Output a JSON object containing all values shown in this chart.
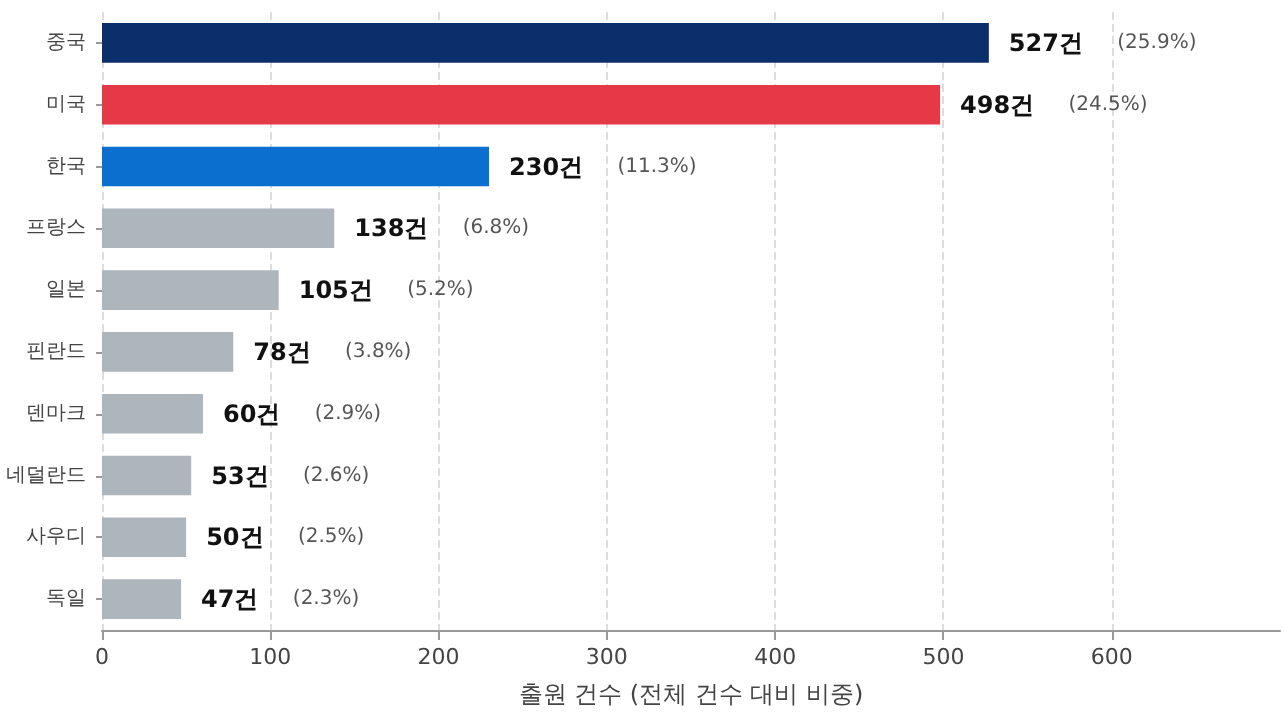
{
  "chart_data": {
    "type": "bar",
    "orientation": "horizontal",
    "xlabel": "출원 건수 (전체 건수 대비 비중)",
    "categories": [
      "중국",
      "미국",
      "한국",
      "프랑스",
      "일본",
      "핀란드",
      "덴마크",
      "네덜란드",
      "사우디",
      "독일"
    ],
    "values": [
      527,
      498,
      230,
      138,
      105,
      78,
      60,
      53,
      50,
      47
    ],
    "colors": [
      "#0b2f6b",
      "#e63946",
      "#0a6fcf",
      "#adb5bd",
      "#adb5bd",
      "#adb5bd",
      "#adb5bd",
      "#adb5bd",
      "#adb5bd",
      "#adb5bd"
    ],
    "value_labels": [
      "527건 (25.9%)",
      "498건 (24.5%)",
      "230건 (11.3%)",
      "138건 (6.8%)",
      "105건 (5.2%)",
      "78건 (3.8%)",
      "60건 (2.9%)",
      "53건 (2.6%)",
      "50건 (2.5%)",
      "47건 (2.3%)"
    ],
    "xlim": [
      0,
      700
    ],
    "xticks": [
      0,
      100,
      200,
      300,
      400,
      500,
      600
    ],
    "grid": "x"
  }
}
